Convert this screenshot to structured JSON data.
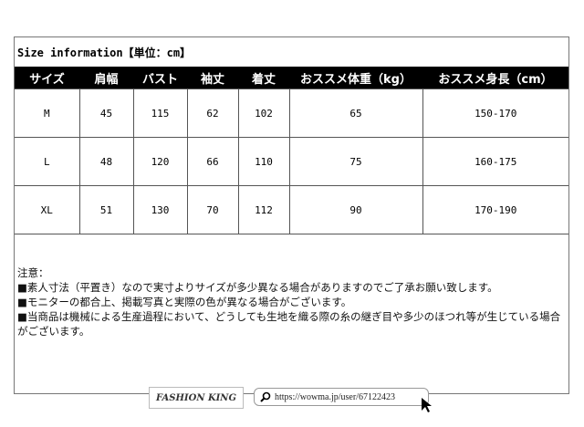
{
  "title": "Size information【単位：cm】",
  "table": {
    "headers": [
      "サイズ",
      "肩幅",
      "バスト",
      "袖丈",
      "着丈",
      "おススメ体重（kg）",
      "おススメ身長（cm）"
    ],
    "rows": [
      [
        "M",
        "45",
        "115",
        "62",
        "102",
        "65",
        "150-170"
      ],
      [
        "L",
        "48",
        "120",
        "66",
        "110",
        "75",
        "160-175"
      ],
      [
        "XL",
        "51",
        "130",
        "70",
        "112",
        "90",
        "170-190"
      ]
    ]
  },
  "notes": {
    "heading": "注意：",
    "items": [
      "■素人寸法（平置き）なので実寸よりサイズが多少異なる場合がありますのでご了承お願い致します。",
      "■モニターの都合上、掲載写真と実際の色が異なる場合がございます。",
      "■当商品は機械による生産過程において、どうしても生地を織る際の糸の継ぎ目や多少のほつれ等が生じている場合がございます。"
    ]
  },
  "footer": {
    "logo": "FASHION KING",
    "url": "https://wowma.jp/user/67122423",
    "icon": "search-icon"
  }
}
